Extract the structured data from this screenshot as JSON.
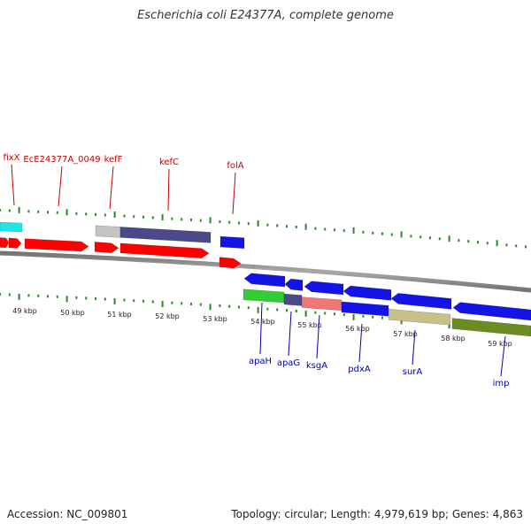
{
  "title": "Escherichia coli E24377A, complete genome",
  "footer": {
    "accession": "Accession: NC_009801",
    "summary": "Topology: circular; Length: 4,979,619 bp; Genes: 4,863"
  },
  "colors": {
    "upper_label": "#cc0000",
    "lower_label": "#0000aa",
    "tick": "#2a8a2a",
    "backbone": "#8c8c8c",
    "scale_text": "#222222"
  },
  "scale_labels": [
    "49 kbp",
    "50 kbp",
    "51 kbp",
    "52 kbp",
    "53 kbp",
    "54 kbp",
    "55 kbp",
    "56 kbp",
    "57 kbp",
    "58 kbp",
    "59 kbp"
  ],
  "upper_gene_labels": [
    "fixX",
    "EcE24377A_0049",
    "kefF",
    "kefC",
    "folA"
  ],
  "lower_gene_labels": [
    "apaH",
    "apaG",
    "ksgA",
    "pdxA",
    "surA",
    "imp"
  ],
  "colors_features": {
    "red": "#ff0000",
    "blue": "#1414e6",
    "cyan": "#22e6e6",
    "grey": "#c4c4c4",
    "slate": "#4a4a8a",
    "green": "#33cc33",
    "pink": "#ee7777",
    "khaki": "#c8c089",
    "olive": "#6b8c23"
  }
}
